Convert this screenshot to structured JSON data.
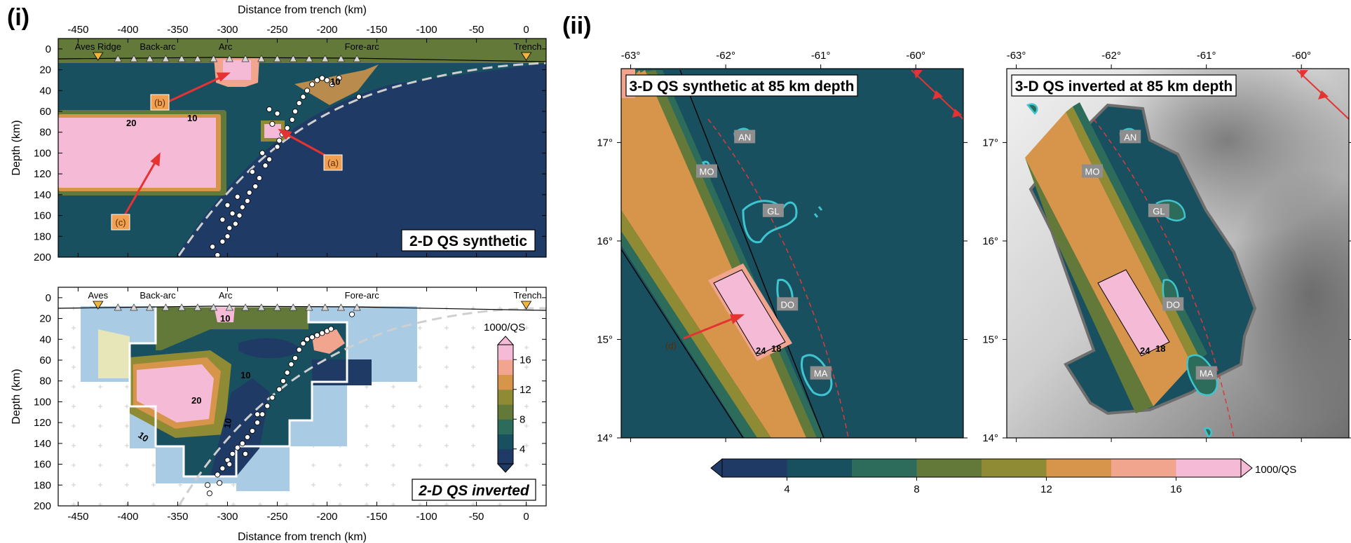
{
  "panel_i_label": "(i)",
  "panel_ii_label": "(ii)",
  "colormap": {
    "levels": [
      2,
      4,
      6,
      8,
      10,
      12,
      14,
      16,
      18
    ],
    "colors": [
      "#1f3a64",
      "#18505f",
      "#2d6c5a",
      "#63793a",
      "#8f8b35",
      "#d6954a",
      "#f1a58f",
      "#f5bad6"
    ],
    "label": "1000/QS",
    "ticks_horizontal": [
      "4",
      "8",
      "12",
      "16"
    ],
    "ticks_vertical": [
      "4",
      "8",
      "12",
      "16"
    ]
  },
  "chart_data": [
    {
      "type": "heatmap",
      "title": "2-D QS synthetic",
      "xlabel": "Distance from trench (km)",
      "ylabel": "Depth (km)",
      "xlim": [
        -470,
        20
      ],
      "ylim": [
        200,
        -10
      ],
      "x_ticks": [
        "-450",
        "-400",
        "-350",
        "-300",
        "-250",
        "-200",
        "-150",
        "-100",
        "-50",
        "0"
      ],
      "y_ticks": [
        "0",
        "20",
        "40",
        "60",
        "80",
        "100",
        "120",
        "140",
        "160",
        "180",
        "200"
      ],
      "region_labels": [
        "Aves Ridge",
        "Back-arc",
        "Arc",
        "Fore-arc",
        "Trench"
      ],
      "contour_labels": [
        "10",
        "20",
        "10"
      ],
      "annotations": [
        "(a)",
        "(b)",
        "(c)"
      ],
      "anomalies": [
        {
          "name": "(a)",
          "x_range": [
            -262,
            -245
          ],
          "depth_range": [
            65,
            82
          ],
          "value": 18
        },
        {
          "name": "(b)",
          "x_range": [
            -320,
            -285
          ],
          "depth_range": [
            0,
            25
          ],
          "value": 18
        },
        {
          "name": "(c)",
          "x_range": [
            -470,
            -305
          ],
          "depth_range": [
            70,
            125
          ],
          "value": 18
        }
      ],
      "earthquakes": [
        [
          -312,
          210
        ],
        [
          -310,
          198
        ],
        [
          -315,
          190
        ],
        [
          -305,
          185
        ],
        [
          -300,
          180
        ],
        [
          -298,
          172
        ],
        [
          -292,
          168
        ],
        [
          -288,
          160
        ],
        [
          -295,
          158
        ],
        [
          -285,
          152
        ],
        [
          -280,
          146
        ],
        [
          -290,
          142
        ],
        [
          -278,
          138
        ],
        [
          -272,
          132
        ],
        [
          -268,
          124
        ],
        [
          -275,
          118
        ],
        [
          -262,
          112
        ],
        [
          -258,
          106
        ],
        [
          -265,
          100
        ],
        [
          -250,
          94
        ],
        [
          -248,
          88
        ],
        [
          -245,
          82
        ],
        [
          -240,
          76
        ],
        [
          -255,
          72
        ],
        [
          -235,
          68
        ],
        [
          -232,
          60
        ],
        [
          -228,
          52
        ],
        [
          -224,
          46
        ],
        [
          -220,
          40
        ],
        [
          -215,
          34
        ],
        [
          -210,
          30
        ],
        [
          -205,
          28
        ],
        [
          -200,
          30
        ],
        [
          -195,
          34
        ],
        [
          -188,
          28
        ],
        [
          -168,
          46
        ],
        [
          -250,
          62
        ],
        [
          -258,
          58
        ],
        [
          -305,
          164
        ],
        [
          -300,
          150
        ]
      ]
    },
    {
      "type": "heatmap",
      "title": "2-D QS inverted",
      "xlabel": "Distance from trench (km)",
      "ylabel": "Depth (km)",
      "xlim": [
        -470,
        20
      ],
      "ylim": [
        200,
        -10
      ],
      "x_ticks": [
        "-450",
        "-400",
        "-350",
        "-300",
        "-250",
        "-200",
        "-150",
        "-100",
        "-50",
        "0"
      ],
      "y_ticks": [
        "0",
        "20",
        "40",
        "60",
        "80",
        "100",
        "120",
        "140",
        "160",
        "180",
        "200"
      ],
      "region_labels": [
        "Aves",
        "Back-arc",
        "Arc",
        "Fore-arc",
        "Trench"
      ],
      "contour_labels": [
        "10",
        "10",
        "20",
        "10",
        "10"
      ],
      "earthquakes": [
        [
          -318,
          188
        ],
        [
          -320,
          180
        ],
        [
          -310,
          170
        ],
        [
          -305,
          164
        ],
        [
          -300,
          156
        ],
        [
          -295,
          150
        ],
        [
          -290,
          144
        ],
        [
          -285,
          140
        ],
        [
          -280,
          134
        ],
        [
          -275,
          128
        ],
        [
          -270,
          120
        ],
        [
          -265,
          112
        ],
        [
          -260,
          104
        ],
        [
          -255,
          96
        ],
        [
          -248,
          88
        ],
        [
          -244,
          80
        ],
        [
          -240,
          72
        ],
        [
          -236,
          64
        ],
        [
          -232,
          58
        ],
        [
          -228,
          50
        ],
        [
          -224,
          44
        ],
        [
          -220,
          40
        ],
        [
          -215,
          38
        ],
        [
          -210,
          36
        ],
        [
          -205,
          34
        ],
        [
          -200,
          32
        ],
        [
          -196,
          30
        ],
        [
          -175,
          16
        ],
        [
          -282,
          150
        ],
        [
          -298,
          160
        ],
        [
          -308,
          178
        ],
        [
          -270,
          112
        ]
      ]
    },
    {
      "type": "heatmap",
      "title": "3-D QS synthetic at 85 km depth",
      "xlim": [
        -63.1,
        -59.5
      ],
      "ylim": [
        14.0,
        17.75
      ],
      "x_ticks": [
        "-63°",
        "-62°",
        "-61°",
        "-60°"
      ],
      "y_ticks": [
        "14°",
        "15°",
        "16°",
        "17°"
      ],
      "island_labels": [
        "AN",
        "MO",
        "GL",
        "DO",
        "MA"
      ],
      "contour_labels": [
        "24",
        "18"
      ],
      "annotation": "(d)",
      "anomaly": {
        "name": "(d)",
        "value": 18,
        "center_lon": -61.75,
        "center_lat": 15.2
      }
    },
    {
      "type": "heatmap",
      "title": "3-D QS inverted at 85 km depth",
      "xlim": [
        -63.1,
        -59.5
      ],
      "ylim": [
        14.0,
        17.75
      ],
      "x_ticks": [
        "-63°",
        "-62°",
        "-61°",
        "-60°"
      ],
      "y_ticks": [
        "14°",
        "15°",
        "16°",
        "17°"
      ],
      "island_labels": [
        "AN",
        "MO",
        "GL",
        "DO",
        "MA"
      ],
      "contour_labels": [
        "24",
        "18"
      ]
    }
  ]
}
